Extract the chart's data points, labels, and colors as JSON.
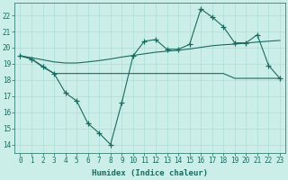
{
  "xlabel": "Humidex (Indice chaleur)",
  "ylabel": "",
  "background_color": "#cceee8",
  "grid_color": "#aaddd8",
  "line_color": "#1a6b60",
  "x_values": [
    0,
    1,
    2,
    3,
    4,
    5,
    6,
    7,
    8,
    9,
    10,
    11,
    12,
    13,
    14,
    15,
    16,
    17,
    18,
    19,
    20,
    21,
    22,
    23
  ],
  "line1": [
    19.5,
    19.3,
    18.8,
    18.4,
    17.2,
    16.7,
    15.3,
    14.7,
    14.0,
    16.6,
    19.5,
    20.4,
    20.5,
    19.9,
    19.9,
    20.2,
    22.4,
    21.9,
    21.3,
    20.3,
    20.3,
    20.8,
    18.9,
    18.1
  ],
  "line2": [
    19.5,
    19.3,
    18.85,
    18.4,
    18.4,
    18.4,
    18.4,
    18.4,
    18.4,
    18.4,
    18.4,
    18.4,
    18.4,
    18.4,
    18.4,
    18.4,
    18.4,
    18.4,
    18.4,
    18.1,
    18.1,
    18.1,
    18.1,
    18.1
  ],
  "line3": [
    19.5,
    19.38,
    19.25,
    19.12,
    19.05,
    19.05,
    19.12,
    19.2,
    19.3,
    19.42,
    19.52,
    19.62,
    19.72,
    19.78,
    19.84,
    19.92,
    20.02,
    20.12,
    20.18,
    20.22,
    20.28,
    20.35,
    20.4,
    20.45
  ],
  "ylim": [
    13.5,
    22.8
  ],
  "xlim": [
    -0.5,
    23.5
  ],
  "yticks": [
    14,
    15,
    16,
    17,
    18,
    19,
    20,
    21,
    22
  ],
  "xticks": [
    0,
    1,
    2,
    3,
    4,
    5,
    6,
    7,
    8,
    9,
    10,
    11,
    12,
    13,
    14,
    15,
    16,
    17,
    18,
    19,
    20,
    21,
    22,
    23
  ],
  "marker": "+",
  "markersize": 4,
  "linewidth": 0.8,
  "tick_fontsize": 5.5,
  "label_fontsize": 6.5
}
